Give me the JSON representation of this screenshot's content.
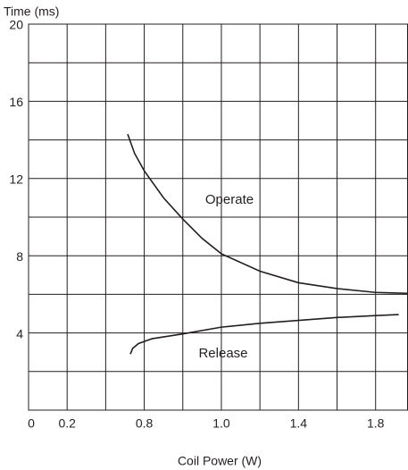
{
  "chart_data": {
    "type": "line",
    "y_label": "Time (ms)",
    "x_label": "Coil Power (W)",
    "xlim": [
      0,
      9.84
    ],
    "xticks": [
      {
        "value": 0,
        "label": "0"
      },
      {
        "value": 1,
        "label": "0.2"
      },
      {
        "value": 2,
        "label": null
      },
      {
        "value": 3,
        "label": "0.8"
      },
      {
        "value": 4,
        "label": null
      },
      {
        "value": 5,
        "label": "1.0"
      },
      {
        "value": 6,
        "label": null
      },
      {
        "value": 7,
        "label": "1.4"
      },
      {
        "value": 8,
        "label": null
      },
      {
        "value": 9,
        "label": "1.8"
      }
    ],
    "ylim": [
      0,
      20
    ],
    "yticks": [
      {
        "value": 0,
        "label": null
      },
      {
        "value": 2,
        "label": null
      },
      4,
      {
        "value": 6,
        "label": null
      },
      8,
      {
        "value": 10,
        "label": null
      },
      12,
      {
        "value": 14,
        "label": null
      },
      16,
      {
        "value": 18,
        "label": null
      },
      20
    ],
    "grid": true,
    "series": [
      {
        "name": "Operate",
        "color": "#231f20",
        "x": [
          2.57,
          2.75,
          3,
          3.5,
          4,
          4.5,
          5,
          6,
          7,
          8,
          9,
          9.84
        ],
        "values": [
          14.3,
          13.3,
          12.4,
          11.0,
          9.9,
          8.9,
          8.1,
          7.2,
          6.6,
          6.3,
          6.1,
          6.05
        ]
      },
      {
        "name": "Release",
        "color": "#231f20",
        "x": [
          2.64,
          2.7,
          2.85,
          3.2,
          4,
          5,
          6,
          7,
          8,
          9,
          9.6
        ],
        "values": [
          2.9,
          3.2,
          3.45,
          3.7,
          3.95,
          4.3,
          4.5,
          4.65,
          4.8,
          4.9,
          4.95
        ]
      }
    ]
  }
}
